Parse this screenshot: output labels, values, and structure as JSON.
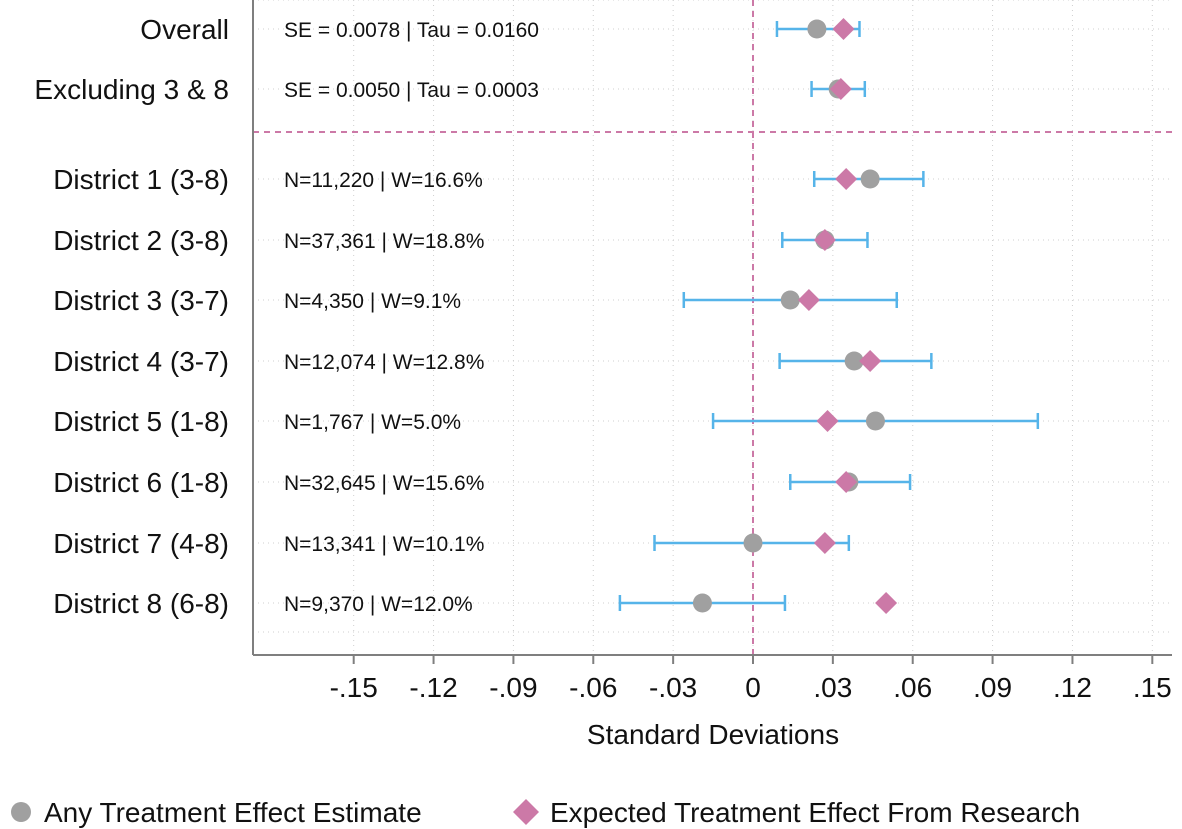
{
  "chart_data": {
    "type": "scatter",
    "subtype": "forest-plot",
    "title": "",
    "xlabel": "Standard Deviations",
    "ylabel": "",
    "xlim": [
      -0.18,
      0.155
    ],
    "xticks": [
      -0.15,
      -0.12,
      -0.09,
      -0.06,
      -0.03,
      0,
      0.03,
      0.06,
      0.09,
      0.12,
      0.15
    ],
    "xtick_labels": [
      "-.15",
      "-.12",
      "-.09",
      "-.06",
      "-.03",
      "0",
      ".03",
      ".06",
      ".09",
      ".12",
      ".15"
    ],
    "grid": true,
    "reference_line_x": 0,
    "legend_position": "bottom",
    "colors": {
      "estimate": "#a0a0a0",
      "expected": "#cc79a7",
      "ci": "#56b4e9",
      "reference": "#cc79a7"
    },
    "series": [
      {
        "name": "Any Treatment Effect Estimate",
        "marker": "circle",
        "color": "#a0a0a0"
      },
      {
        "name": "Expected Treatment Effect From Research",
        "marker": "diamond",
        "color": "#cc79a7"
      }
    ],
    "summary_rows": [
      {
        "label": "Overall",
        "annotation": "SE = 0.0078 | Tau = 0.0160",
        "estimate": 0.024,
        "ci": [
          0.009,
          0.04
        ],
        "expected": 0.034
      },
      {
        "label": "Excluding 3 & 8",
        "annotation": "SE = 0.0050 | Tau = 0.0003",
        "estimate": 0.032,
        "ci": [
          0.022,
          0.042
        ],
        "expected": 0.033
      }
    ],
    "rows": [
      {
        "label": "District 1 (3-8)",
        "annotation": "N=11,220 | W=16.6%",
        "estimate": 0.044,
        "ci": [
          0.023,
          0.064
        ],
        "expected": 0.035
      },
      {
        "label": "District 2 (3-8)",
        "annotation": "N=37,361 | W=18.8%",
        "estimate": 0.027,
        "ci": [
          0.011,
          0.043
        ],
        "expected": 0.027
      },
      {
        "label": "District 3 (3-7)",
        "annotation": "N=4,350 | W=9.1%",
        "estimate": 0.014,
        "ci": [
          -0.026,
          0.054
        ],
        "expected": 0.021
      },
      {
        "label": "District 4 (3-7)",
        "annotation": "N=12,074 | W=12.8%",
        "estimate": 0.038,
        "ci": [
          0.01,
          0.067
        ],
        "expected": 0.044
      },
      {
        "label": "District 5 (1-8)",
        "annotation": "N=1,767 | W=5.0%",
        "estimate": 0.046,
        "ci": [
          -0.015,
          0.107
        ],
        "expected": 0.028
      },
      {
        "label": "District 6 (1-8)",
        "annotation": "N=32,645 | W=15.6%",
        "estimate": 0.036,
        "ci": [
          0.014,
          0.059
        ],
        "expected": 0.035
      },
      {
        "label": "District 7 (4-8)",
        "annotation": "N=13,341 | W=10.1%",
        "estimate": 0.0,
        "ci": [
          -0.037,
          0.036
        ],
        "expected": 0.027
      },
      {
        "label": "District 8 (6-8)",
        "annotation": "N=9,370 | W=12.0%",
        "estimate": -0.019,
        "ci": [
          -0.05,
          0.012
        ],
        "expected": 0.05
      }
    ]
  }
}
